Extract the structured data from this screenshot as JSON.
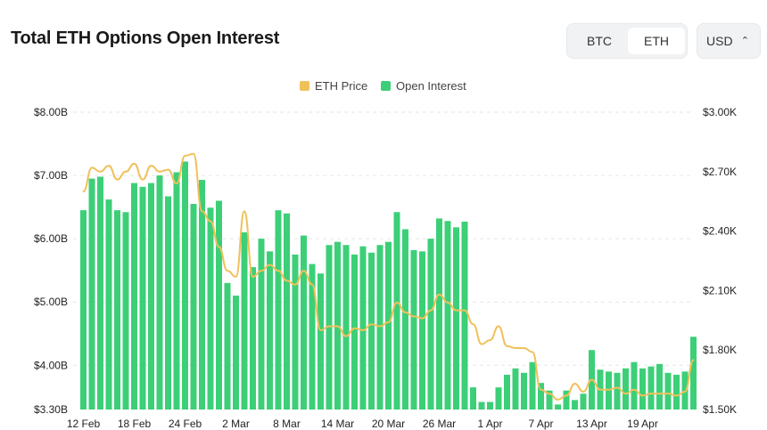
{
  "header": {
    "title": "Total ETH Options Open Interest",
    "asset_tabs": [
      {
        "label": "BTC",
        "active": false
      },
      {
        "label": "ETH",
        "active": true
      }
    ],
    "currency": {
      "label": "USD",
      "icon": "updown-chevron-icon"
    }
  },
  "colors": {
    "bars": "#3ccf78",
    "price_line": "#f0c15a",
    "grid": "#e6e6e6",
    "text": "#1a1a1a"
  },
  "chart_data": {
    "type": "bar+line",
    "legend": [
      {
        "label": "ETH Price",
        "color": "#f0c15a"
      },
      {
        "label": "Open Interest",
        "color": "#3ccf78"
      }
    ],
    "legend_position": "top-center",
    "grid": "horizontal-dashed",
    "y_left": {
      "ticks": [
        "$3.30B",
        "$4.00B",
        "$5.00B",
        "$6.00B",
        "$7.00B",
        "$8.00B"
      ],
      "tick_values": [
        3.3,
        4.0,
        5.0,
        6.0,
        7.0,
        8.0
      ],
      "range": [
        3.3,
        8.0
      ],
      "unit": "B USD"
    },
    "y_right": {
      "ticks": [
        "$1.50K",
        "$1.80K",
        "$2.10K",
        "$2.40K",
        "$2.70K",
        "$3.00K"
      ],
      "tick_values": [
        1.5,
        1.8,
        2.1,
        2.4,
        2.7,
        3.0
      ],
      "range": [
        1.5,
        3.0
      ],
      "unit": "K USD"
    },
    "x_ticks": [
      "12 Feb",
      "18 Feb",
      "24 Feb",
      "2 Mar",
      "8 Mar",
      "14 Mar",
      "20 Mar",
      "26 Mar",
      "1 Apr",
      "7 Apr",
      "13 Apr",
      "19 Apr"
    ],
    "x_tick_day_index": [
      0,
      6,
      12,
      18,
      24,
      30,
      36,
      42,
      48,
      54,
      60,
      66
    ],
    "series": [
      {
        "name": "Open Interest",
        "axis": "left",
        "values": [
          6.45,
          6.95,
          6.98,
          6.62,
          6.45,
          6.42,
          6.88,
          6.82,
          6.88,
          7.0,
          6.67,
          7.05,
          7.22,
          6.55,
          6.93,
          6.49,
          6.6,
          5.3,
          5.1,
          6.1,
          5.55,
          6.0,
          5.8,
          6.45,
          6.4,
          5.75,
          6.05,
          5.6,
          5.45,
          5.9,
          5.95,
          5.9,
          5.75,
          5.88,
          5.78,
          5.9,
          5.95,
          6.42,
          6.15,
          5.82,
          5.8,
          6.0,
          6.32,
          6.28,
          6.18,
          6.27,
          3.65,
          3.42,
          3.42,
          3.65,
          3.85,
          3.95,
          3.88,
          4.05,
          3.72,
          3.6,
          3.38,
          3.6,
          3.45,
          3.55,
          4.24,
          3.93,
          3.9,
          3.88,
          3.95,
          4.05,
          3.95,
          3.98,
          4.02,
          3.88,
          3.85,
          3.9,
          4.45
        ]
      },
      {
        "name": "ETH Price",
        "axis": "right",
        "values": [
          2.6,
          2.72,
          2.7,
          2.73,
          2.66,
          2.7,
          2.74,
          2.66,
          2.73,
          2.7,
          2.71,
          2.64,
          2.78,
          2.79,
          2.5,
          2.45,
          2.32,
          2.2,
          2.17,
          2.5,
          2.17,
          2.2,
          2.23,
          2.2,
          2.15,
          2.13,
          2.2,
          2.13,
          1.9,
          1.92,
          1.92,
          1.87,
          1.91,
          1.9,
          1.93,
          1.92,
          1.94,
          2.04,
          1.99,
          1.97,
          1.96,
          2.0,
          2.08,
          2.04,
          2.0,
          2.0,
          1.93,
          1.83,
          1.85,
          1.92,
          1.82,
          1.81,
          1.81,
          1.79,
          1.6,
          1.58,
          1.55,
          1.57,
          1.63,
          1.59,
          1.65,
          1.6,
          1.6,
          1.61,
          1.58,
          1.6,
          1.57,
          1.58,
          1.58,
          1.58,
          1.57,
          1.59,
          1.75
        ]
      }
    ]
  }
}
